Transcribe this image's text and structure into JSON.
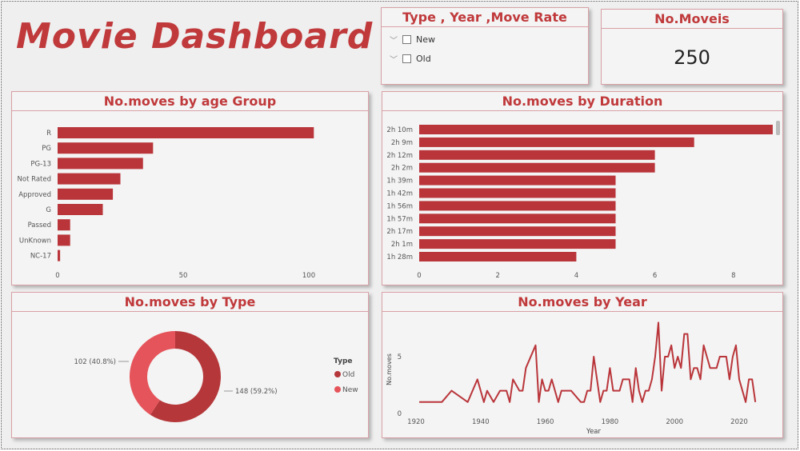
{
  "header": {
    "title": "Movie Dashboard"
  },
  "slicer": {
    "title": "Type , Year ,Move Rate",
    "items": [
      {
        "label": "New",
        "checked": false
      },
      {
        "label": "Old",
        "checked": false
      }
    ]
  },
  "card": {
    "title": "No.Moveis",
    "value": "250"
  },
  "colors": {
    "accent": "#c0393b",
    "bar": "#b9353a",
    "old": "#b5373a",
    "new": "#e5545a"
  },
  "chart_data": [
    {
      "type": "bar",
      "orientation": "horizontal",
      "title": "No.moves by age Group",
      "categories": [
        "R",
        "PG",
        "PG-13",
        "Not Rated",
        "Approved",
        "G",
        "Passed",
        "UnKnown",
        "NC-17"
      ],
      "values": [
        102,
        38,
        34,
        25,
        22,
        18,
        5,
        5,
        1
      ],
      "xlim": [
        0,
        115
      ],
      "xticks": [
        "0",
        "50",
        "100"
      ]
    },
    {
      "type": "bar",
      "orientation": "horizontal",
      "title": "No.moves by Duration",
      "categories": [
        "2h 10m",
        "2h 9m",
        "2h 12m",
        "2h 2m",
        "1h 39m",
        "1h 42m",
        "1h 56m",
        "1h 57m",
        "2h 17m",
        "2h 1m",
        "1h 28m"
      ],
      "values": [
        9,
        7,
        6,
        6,
        5,
        5,
        5,
        5,
        5,
        5,
        4
      ],
      "xlim": [
        0,
        9
      ],
      "xticks": [
        "0",
        "2",
        "4",
        "6",
        "8"
      ]
    },
    {
      "type": "pie",
      "donut": true,
      "title": "No.moves by Type",
      "legend_title": "Type",
      "slices": [
        {
          "name": "Old",
          "value": 148,
          "label": "148 (59.2%)"
        },
        {
          "name": "New",
          "value": 102,
          "label": "102 (40.8%)"
        }
      ]
    },
    {
      "type": "line",
      "title": "No.moves by Year",
      "xlabel": "Year",
      "ylabel": "No.moves",
      "xticks": [
        "1920",
        "1940",
        "1960",
        "1980",
        "2000",
        "2020"
      ],
      "yticks": [
        "0",
        "5"
      ],
      "x": [
        1921,
        1928,
        1931,
        1936,
        1939,
        1941,
        1942,
        1944,
        1946,
        1948,
        1949,
        1950,
        1952,
        1953,
        1954,
        1957,
        1958,
        1959,
        1960,
        1961,
        1962,
        1964,
        1965,
        1968,
        1971,
        1972,
        1973,
        1974,
        1975,
        1977,
        1978,
        1979,
        1980,
        1981,
        1983,
        1984,
        1986,
        1987,
        1988,
        1989,
        1990,
        1991,
        1992,
        1993,
        1994,
        1995,
        1996,
        1997,
        1998,
        1999,
        2000,
        2001,
        2002,
        2003,
        2004,
        2005,
        2006,
        2007,
        2008,
        2009,
        2010,
        2011,
        2013,
        2014,
        2016,
        2017,
        2018,
        2019,
        2020,
        2022,
        2023,
        2024,
        2025
      ],
      "y": [
        1,
        1,
        2,
        1,
        3,
        1,
        2,
        1,
        2,
        2,
        1,
        3,
        2,
        2,
        4,
        6,
        1,
        3,
        2,
        2,
        3,
        1,
        2,
        2,
        1,
        1,
        2,
        2,
        5,
        1,
        2,
        2,
        4,
        2,
        2,
        3,
        3,
        1,
        4,
        2,
        1,
        2,
        2,
        3,
        5,
        8,
        2,
        5,
        5,
        6,
        4,
        5,
        4,
        7,
        7,
        3,
        4,
        4,
        3,
        6,
        5,
        4,
        4,
        5,
        5,
        3,
        5,
        6,
        3,
        1,
        3,
        3,
        1
      ]
    }
  ]
}
